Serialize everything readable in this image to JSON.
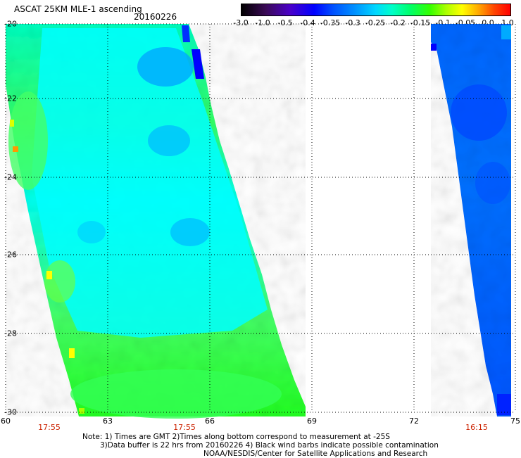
{
  "header": {
    "title": "ASCAT 25KM MLE-1 ascending",
    "date": "20160226"
  },
  "colorbar": {
    "ticks": [
      "-3.0",
      "-1.0",
      "-0.5",
      "-0.4",
      "-0.35",
      "-0.3",
      "-0.25",
      "-0.2",
      "-0.15",
      "-0.1",
      "-0.05",
      "0.0",
      "1.0"
    ]
  },
  "axes": {
    "y_labels": [
      "-20",
      "-22",
      "-24",
      "-26",
      "-28",
      "-30"
    ],
    "x_labels": [
      "60",
      "63",
      "66",
      "69",
      "72",
      "75"
    ]
  },
  "pass_times": [
    "17:55",
    "17:55",
    "16:15"
  ],
  "notes": {
    "line1": "Note: 1) Times are GMT 2)Times along bottom correspond to measurement at -25S",
    "line2": "3)Data buffer is 22 hrs from 20160226 4) Black wind barbs indicate possible contamination",
    "line3": "NOAA/NESDIS/Center for Satellite Applications and Research"
  },
  "colors": {
    "green": "#33ff33",
    "cyan": "#00ffff",
    "blue": "#0080ff",
    "deep_blue": "#0044ff",
    "time_red": "#cc2200"
  }
}
